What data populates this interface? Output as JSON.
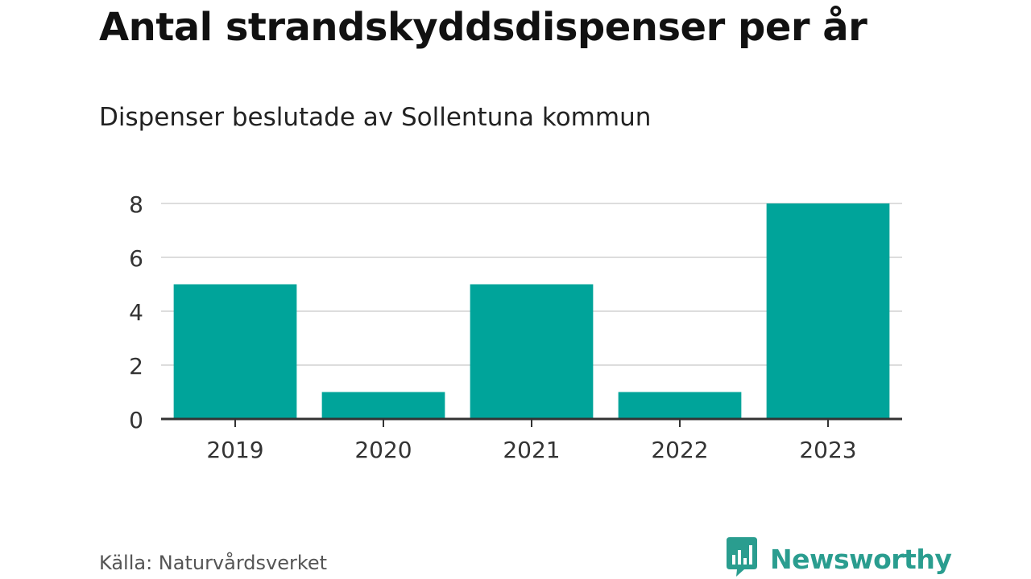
{
  "header": {
    "title": "Antal strandskyddsdispenser per år",
    "subtitle": "Dispenser beslutade av Sollentuna kommun"
  },
  "footer": {
    "source": "Källa: Naturvårdsverket",
    "brand": "Newsworthy",
    "brand_icon": "bar-chart-speech-bubble-icon"
  },
  "colors": {
    "bar": "#00A49A",
    "grid": "#dddddd",
    "axis": "#333333",
    "brand": "#2a9d8f"
  },
  "chart_data": {
    "type": "bar",
    "categories": [
      "2019",
      "2020",
      "2021",
      "2022",
      "2023"
    ],
    "values": [
      5,
      1,
      5,
      1,
      8
    ],
    "title": "Antal strandskyddsdispenser per år",
    "subtitle": "Dispenser beslutade av Sollentuna kommun",
    "xlabel": "",
    "ylabel": "",
    "ylim": [
      0,
      8
    ],
    "yticks": [
      0,
      2,
      4,
      6,
      8
    ],
    "grid": true,
    "legend": "none"
  }
}
